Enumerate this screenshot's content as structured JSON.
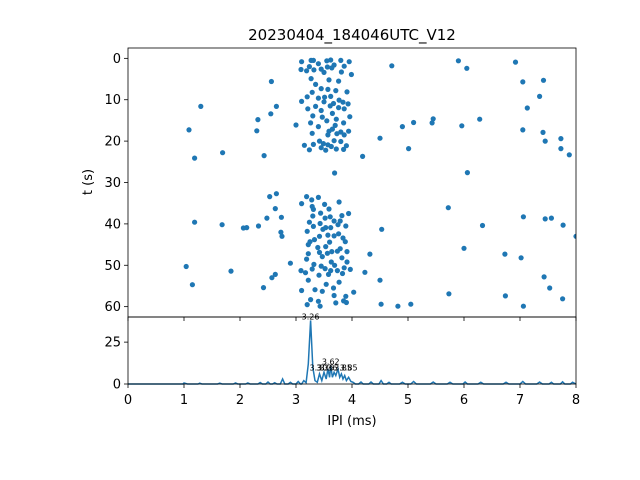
{
  "chart_data": [
    {
      "type": "scatter",
      "title": "20230404_184046UTC_V12",
      "ylabel": "t (s)",
      "xlim": [
        0,
        8
      ],
      "ylim": [
        62.5,
        -2.5
      ],
      "y_inverted": true,
      "xticks": [
        0,
        1,
        2,
        3,
        4,
        5,
        6,
        7,
        8
      ],
      "yticks": [
        0,
        10,
        20,
        30,
        40,
        50,
        60
      ],
      "xtick_labels_visible": false,
      "marker_color": "#1f77b4",
      "points": [
        [
          3.27,
          0.5
        ],
        [
          3.31,
          0.5
        ],
        [
          3.1,
          0.8
        ],
        [
          3.55,
          0.6
        ],
        [
          3.62,
          0.4
        ],
        [
          3.8,
          0.5
        ],
        [
          3.95,
          0.8
        ],
        [
          5.9,
          0.6
        ],
        [
          6.92,
          0.9
        ],
        [
          3.4,
          1.3
        ],
        [
          3.68,
          1.6
        ],
        [
          3.86,
          1.9
        ],
        [
          3.24,
          2.0
        ],
        [
          3.56,
          2.1
        ],
        [
          3.32,
          2.8
        ],
        [
          3.64,
          2.3
        ],
        [
          4.71,
          1.8
        ],
        [
          3.09,
          2.7
        ],
        [
          3.19,
          3.0
        ],
        [
          3.81,
          3.3
        ],
        [
          3.5,
          3.4
        ],
        [
          3.45,
          2.6
        ],
        [
          6.05,
          2.4
        ],
        [
          3.99,
          3.9
        ],
        [
          7.42,
          5.3
        ],
        [
          3.27,
          4.9
        ],
        [
          3.59,
          5.2
        ],
        [
          3.76,
          5.5
        ],
        [
          2.56,
          5.6
        ],
        [
          7.05,
          5.7
        ],
        [
          3.35,
          6.3
        ],
        [
          3.45,
          7.3
        ],
        [
          3.57,
          7.5
        ],
        [
          3.71,
          7.8
        ],
        [
          3.29,
          8.2
        ],
        [
          3.91,
          8.1
        ],
        [
          3.51,
          9.4
        ],
        [
          3.62,
          9.2
        ],
        [
          7.35,
          9.2
        ],
        [
          3.2,
          9.3
        ],
        [
          3.4,
          9.6
        ],
        [
          3.77,
          10.1
        ],
        [
          3.1,
          10.4
        ],
        [
          3.84,
          10.6
        ],
        [
          3.67,
          10.9
        ],
        [
          3.5,
          10.5
        ],
        [
          3.93,
          11.0
        ],
        [
          3.61,
          11.5
        ],
        [
          3.35,
          11.6
        ],
        [
          2.65,
          11.6
        ],
        [
          1.3,
          11.6
        ],
        [
          3.76,
          11.9
        ],
        [
          3.86,
          12.2
        ],
        [
          3.21,
          12.2
        ],
        [
          7.13,
          12.0
        ],
        [
          3.45,
          12.6
        ],
        [
          2.55,
          13.4
        ],
        [
          3.65,
          13.3
        ],
        [
          3.3,
          13.9
        ],
        [
          3.47,
          14.2
        ],
        [
          3.96,
          14.1
        ],
        [
          3.72,
          14.7
        ],
        [
          6.28,
          14.7
        ],
        [
          5.45,
          14.6
        ],
        [
          2.32,
          14.8
        ],
        [
          3.55,
          15.1
        ],
        [
          5.1,
          15.5
        ],
        [
          3.26,
          15.6
        ],
        [
          3.85,
          15.6
        ],
        [
          3.7,
          16.2
        ],
        [
          5.43,
          15.6
        ],
        [
          3.0,
          16.1
        ],
        [
          5.96,
          16.3
        ],
        [
          3.4,
          16.5
        ],
        [
          4.9,
          16.5
        ],
        [
          3.65,
          17.1
        ],
        [
          1.09,
          17.3
        ],
        [
          3.59,
          17.6
        ],
        [
          2.3,
          17.5
        ],
        [
          7.05,
          17.3
        ],
        [
          3.8,
          17.8
        ],
        [
          3.94,
          17.6
        ],
        [
          3.29,
          18.1
        ],
        [
          7.41,
          17.9
        ],
        [
          3.73,
          18.2
        ],
        [
          3.86,
          18.5
        ],
        [
          3.57,
          18.5
        ],
        [
          4.5,
          19.3
        ],
        [
          7.73,
          19.4
        ],
        [
          3.68,
          19.9
        ],
        [
          3.42,
          20.0
        ],
        [
          3.49,
          20.6
        ],
        [
          7.45,
          20.0
        ],
        [
          3.8,
          20.1
        ],
        [
          3.31,
          20.8
        ],
        [
          3.57,
          20.9
        ],
        [
          3.9,
          21.1
        ],
        [
          3.15,
          21.0
        ],
        [
          3.63,
          21.3
        ],
        [
          3.45,
          21.6
        ],
        [
          3.72,
          21.9
        ],
        [
          3.85,
          22.0
        ],
        [
          5.01,
          21.8
        ],
        [
          7.73,
          21.8
        ],
        [
          3.24,
          22.1
        ],
        [
          3.53,
          22.2
        ],
        [
          1.69,
          22.8
        ],
        [
          7.88,
          23.3
        ],
        [
          1.19,
          24.1
        ],
        [
          2.43,
          23.5
        ],
        [
          4.19,
          23.7
        ],
        [
          6.06,
          27.6
        ],
        [
          3.69,
          27.7
        ],
        [
          3.19,
          33.4
        ],
        [
          3.4,
          33.6
        ],
        [
          2.53,
          33.4
        ],
        [
          2.65,
          32.7
        ],
        [
          3.28,
          34.2
        ],
        [
          3.51,
          35.3
        ],
        [
          3.1,
          35.1
        ],
        [
          3.77,
          34.7
        ],
        [
          3.29,
          35.8
        ],
        [
          3.31,
          36.5
        ],
        [
          3.59,
          36.4
        ],
        [
          2.63,
          36.3
        ],
        [
          5.72,
          36.1
        ],
        [
          3.44,
          37.4
        ],
        [
          3.82,
          38.0
        ],
        [
          3.3,
          38.1
        ],
        [
          3.61,
          38.3
        ],
        [
          3.94,
          37.5
        ],
        [
          7.06,
          38.3
        ],
        [
          3.52,
          38.6
        ],
        [
          2.48,
          38.6
        ],
        [
          7.45,
          38.8
        ],
        [
          2.74,
          38.4
        ],
        [
          3.79,
          39.3
        ],
        [
          7.56,
          38.6
        ],
        [
          3.24,
          39.6
        ],
        [
          3.68,
          39.3
        ],
        [
          1.19,
          39.6
        ],
        [
          3.43,
          39.9
        ],
        [
          3.75,
          40.2
        ],
        [
          3.31,
          40.6
        ],
        [
          3.53,
          40.9
        ],
        [
          1.68,
          40.2
        ],
        [
          6.33,
          40.4
        ],
        [
          7.77,
          40.3
        ],
        [
          3.62,
          40.9
        ],
        [
          2.33,
          40.5
        ],
        [
          3.89,
          40.5
        ],
        [
          2.12,
          40.9
        ],
        [
          2.06,
          41.0
        ],
        [
          3.48,
          41.3
        ],
        [
          4.53,
          41.3
        ],
        [
          3.2,
          41.8
        ],
        [
          3.76,
          42.4
        ],
        [
          3.57,
          42.7
        ],
        [
          3.42,
          43.0
        ],
        [
          3.68,
          42.9
        ],
        [
          2.73,
          42.0
        ],
        [
          2.75,
          43.0
        ],
        [
          3.84,
          43.4
        ],
        [
          8.0,
          43.0
        ],
        [
          3.33,
          43.8
        ],
        [
          3.25,
          44.3
        ],
        [
          3.88,
          44.3
        ],
        [
          3.53,
          45.5
        ],
        [
          3.6,
          44.4
        ],
        [
          3.22,
          45.0
        ],
        [
          3.39,
          45.7
        ],
        [
          6.0,
          45.9
        ],
        [
          3.79,
          46.0
        ],
        [
          3.74,
          46.6
        ],
        [
          3.42,
          46.9
        ],
        [
          3.64,
          46.7
        ],
        [
          3.91,
          46.7
        ],
        [
          3.22,
          47.2
        ],
        [
          3.56,
          47.1
        ],
        [
          4.32,
          47.3
        ],
        [
          6.73,
          47.3
        ],
        [
          3.82,
          48.2
        ],
        [
          3.47,
          47.9
        ],
        [
          3.63,
          49.2
        ],
        [
          7.02,
          48.2
        ],
        [
          3.19,
          48.5
        ],
        [
          3.91,
          49.2
        ],
        [
          2.9,
          49.5
        ],
        [
          3.32,
          49.8
        ],
        [
          3.69,
          50.0
        ],
        [
          3.45,
          50.2
        ],
        [
          1.04,
          50.3
        ],
        [
          3.86,
          50.6
        ],
        [
          3.52,
          50.8
        ],
        [
          3.29,
          50.9
        ],
        [
          3.97,
          51.0
        ],
        [
          3.09,
          51.3
        ],
        [
          3.62,
          51.3
        ],
        [
          3.74,
          51.3
        ],
        [
          1.84,
          51.4
        ],
        [
          3.17,
          51.8
        ],
        [
          4.23,
          51.7
        ],
        [
          3.41,
          52.4
        ],
        [
          3.58,
          52.2
        ],
        [
          3.83,
          52.0
        ],
        [
          2.63,
          52.2
        ],
        [
          2.57,
          53.0
        ],
        [
          7.43,
          52.8
        ],
        [
          3.22,
          53.6
        ],
        [
          4.5,
          53.6
        ],
        [
          3.77,
          54.1
        ],
        [
          1.15,
          54.7
        ],
        [
          3.54,
          54.6
        ],
        [
          7.53,
          55.5
        ],
        [
          2.42,
          55.4
        ],
        [
          3.67,
          55.5
        ],
        [
          3.34,
          55.9
        ],
        [
          3.1,
          56.1
        ],
        [
          3.47,
          56.3
        ],
        [
          4.03,
          56.5
        ],
        [
          3.68,
          57.3
        ],
        [
          5.73,
          56.9
        ],
        [
          3.89,
          57.5
        ],
        [
          6.74,
          57.4
        ],
        [
          3.85,
          58.6
        ],
        [
          3.26,
          58.3
        ],
        [
          7.76,
          58.1
        ],
        [
          3.4,
          58.7
        ],
        [
          3.9,
          59.0
        ],
        [
          3.71,
          59.1
        ],
        [
          3.2,
          59.5
        ],
        [
          4.52,
          59.4
        ],
        [
          5.05,
          59.4
        ],
        [
          3.43,
          59.9
        ],
        [
          4.82,
          59.9
        ],
        [
          7.06,
          59.9
        ]
      ]
    },
    {
      "type": "line",
      "xlabel": "IPI (ms)",
      "xlim": [
        0,
        8
      ],
      "ylim": [
        0,
        40
      ],
      "xticks": [
        0,
        1,
        2,
        3,
        4,
        5,
        6,
        7,
        8
      ],
      "yticks": [
        0,
        25
      ],
      "line_color": "#1f77b4",
      "baseline": [
        [
          0,
          0
        ],
        [
          0.98,
          0
        ],
        [
          1.0,
          0.6
        ],
        [
          1.06,
          0
        ],
        [
          1.25,
          0
        ],
        [
          1.28,
          0.5
        ],
        [
          1.32,
          0
        ],
        [
          1.6,
          0
        ],
        [
          1.64,
          0.5
        ],
        [
          1.68,
          0
        ],
        [
          1.88,
          0
        ],
        [
          1.92,
          0.6
        ],
        [
          1.96,
          0
        ],
        [
          2.1,
          0
        ],
        [
          2.14,
          0.6
        ],
        [
          2.18,
          0
        ],
        [
          2.32,
          0
        ],
        [
          2.36,
          0.9
        ],
        [
          2.4,
          0
        ],
        [
          2.46,
          0
        ],
        [
          2.5,
          1.2
        ],
        [
          2.54,
          0
        ],
        [
          2.58,
          0
        ],
        [
          2.62,
          0.8
        ],
        [
          2.66,
          0
        ],
        [
          2.72,
          0
        ],
        [
          2.76,
          3.0
        ],
        [
          2.8,
          0
        ],
        [
          2.86,
          0
        ],
        [
          2.9,
          1.0
        ],
        [
          2.94,
          0
        ],
        [
          3.0,
          0
        ],
        [
          3.04,
          1.5
        ],
        [
          3.08,
          0
        ],
        [
          3.1,
          0
        ],
        [
          3.14,
          2.0
        ],
        [
          3.18,
          0.8
        ],
        [
          3.22,
          12.0
        ],
        [
          3.26,
          38.0
        ],
        [
          3.3,
          10.0
        ],
        [
          3.34,
          2.0
        ],
        [
          3.38,
          1.0
        ],
        [
          3.42,
          6.0
        ],
        [
          3.46,
          2.0
        ],
        [
          3.5,
          7.0
        ],
        [
          3.54,
          3.0
        ],
        [
          3.57,
          9.0
        ],
        [
          3.6,
          4.0
        ],
        [
          3.62,
          11.0
        ],
        [
          3.65,
          4.0
        ],
        [
          3.68,
          7.0
        ],
        [
          3.71,
          5.0
        ],
        [
          3.75,
          9.0
        ],
        [
          3.78,
          4.0
        ],
        [
          3.81,
          6.0
        ],
        [
          3.84,
          3.0
        ],
        [
          3.87,
          5.0
        ],
        [
          3.9,
          2.0
        ],
        [
          3.94,
          4.0
        ],
        [
          3.98,
          1.5
        ],
        [
          4.02,
          1.0
        ],
        [
          4.06,
          0
        ],
        [
          4.12,
          0
        ],
        [
          4.16,
          1.2
        ],
        [
          4.2,
          0
        ],
        [
          4.3,
          0
        ],
        [
          4.34,
          1.2
        ],
        [
          4.38,
          0
        ],
        [
          4.48,
          0
        ],
        [
          4.52,
          2.0
        ],
        [
          4.56,
          0
        ],
        [
          4.62,
          0
        ],
        [
          4.66,
          1.0
        ],
        [
          4.7,
          0
        ],
        [
          4.85,
          0
        ],
        [
          4.9,
          1.0
        ],
        [
          4.95,
          0
        ],
        [
          5.05,
          0
        ],
        [
          5.1,
          1.5
        ],
        [
          5.15,
          0
        ],
        [
          5.4,
          0
        ],
        [
          5.45,
          1.2
        ],
        [
          5.5,
          0
        ],
        [
          5.7,
          0
        ],
        [
          5.75,
          1.0
        ],
        [
          5.8,
          0
        ],
        [
          5.98,
          0
        ],
        [
          6.02,
          1.2
        ],
        [
          6.06,
          0
        ],
        [
          6.25,
          0
        ],
        [
          6.3,
          1.0
        ],
        [
          6.35,
          0
        ],
        [
          6.7,
          0
        ],
        [
          6.75,
          1.0
        ],
        [
          6.8,
          0
        ],
        [
          7.0,
          0
        ],
        [
          7.05,
          1.5
        ],
        [
          7.1,
          0
        ],
        [
          7.3,
          0
        ],
        [
          7.35,
          1.2
        ],
        [
          7.4,
          0
        ],
        [
          7.52,
          0
        ],
        [
          7.56,
          1.0
        ],
        [
          7.6,
          0
        ],
        [
          7.72,
          0
        ],
        [
          7.76,
          1.3
        ],
        [
          7.8,
          0
        ],
        [
          7.9,
          0
        ],
        [
          7.94,
          1.0
        ],
        [
          8.0,
          0
        ]
      ],
      "peak_labels": [
        {
          "x": 3.26,
          "y": 38.0,
          "label": "3.26"
        },
        {
          "x": 3.62,
          "y": 11.0,
          "label": "3.62"
        },
        {
          "x": 3.4,
          "y": 7.5,
          "label": "3.30"
        },
        {
          "x": 3.52,
          "y": 7.5,
          "label": "3.36"
        },
        {
          "x": 3.58,
          "y": 7.5,
          "label": "3.36"
        },
        {
          "x": 3.84,
          "y": 7.5,
          "label": "3.85"
        },
        {
          "x": 3.94,
          "y": 7.5,
          "label": "3.85"
        }
      ]
    }
  ]
}
